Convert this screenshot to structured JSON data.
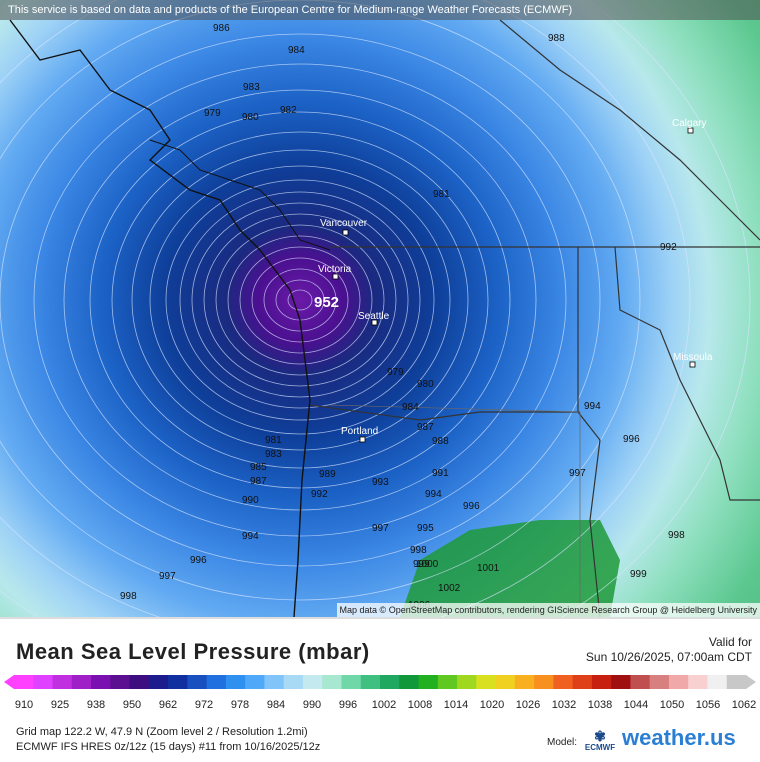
{
  "banner": "This service is based on data and products of the European Centre for Medium-range Weather Forecasts (ECMWF)",
  "attribution": "Map data © OpenStreetMap contributors, rendering GIScience Research Group @ Heidelberg University",
  "low_center": "952",
  "cities": [
    {
      "name": "Calgary"
    },
    {
      "name": "Vancouver"
    },
    {
      "name": "Victoria"
    },
    {
      "name": "Seattle"
    },
    {
      "name": "Missoula"
    },
    {
      "name": "Portland"
    }
  ],
  "isobar_labels": [
    "986",
    "984",
    "988",
    "983",
    "979",
    "982",
    "980",
    "981",
    "979",
    "980",
    "984",
    "987",
    "988",
    "991",
    "992",
    "989",
    "993",
    "994",
    "996",
    "995",
    "997",
    "998",
    "999",
    "1000",
    "1001",
    "1002",
    "990",
    "981",
    "983",
    "985",
    "987",
    "994",
    "996",
    "997",
    "998",
    "999",
    "992",
    "994",
    "996",
    "997",
    "998",
    "1006"
  ],
  "legend": {
    "title": "Mean Sea Level Pressure (mbar)",
    "valid_label": "Valid for",
    "valid_time": "Sun 10/26/2025, 07:00am CDT",
    "ticks": [
      "910",
      "925",
      "938",
      "950",
      "962",
      "972",
      "978",
      "984",
      "990",
      "996",
      "1002",
      "1008",
      "1014",
      "1020",
      "1026",
      "1032",
      "1038",
      "1044",
      "1050",
      "1056",
      "1062"
    ],
    "colors": [
      "#ff40ff",
      "#e040ff",
      "#c030e0",
      "#a020c8",
      "#7a10b0",
      "#5a1090",
      "#3c0e80",
      "#1c1c8c",
      "#1030a0",
      "#1850c0",
      "#2070e0",
      "#3090f0",
      "#50a8f8",
      "#80c4fa",
      "#a8daf6",
      "#c4eaf0",
      "#a8e8d0",
      "#70d8a8",
      "#40c080",
      "#20a860",
      "#10983a",
      "#20b020",
      "#60c820",
      "#a0d820",
      "#d8e020",
      "#f0d020",
      "#f8b020",
      "#f89020",
      "#f06020",
      "#e04018",
      "#c82010",
      "#a01010",
      "#c05050",
      "#d88080",
      "#f0a8a8",
      "#f8d0d0",
      "#f0f0f0",
      "#c8c8c8"
    ],
    "grid_map": "Grid map 122.2 W, 47.9 N (Zoom level 2 / Resolution 1.2mi)",
    "model_run": "ECMWF IFS HRES 0z/12z (15 days) #11 from  10/16/2025/12z",
    "model_label": "Model:",
    "ecmwf_label": "ECMWF",
    "brand": "weather.us"
  }
}
